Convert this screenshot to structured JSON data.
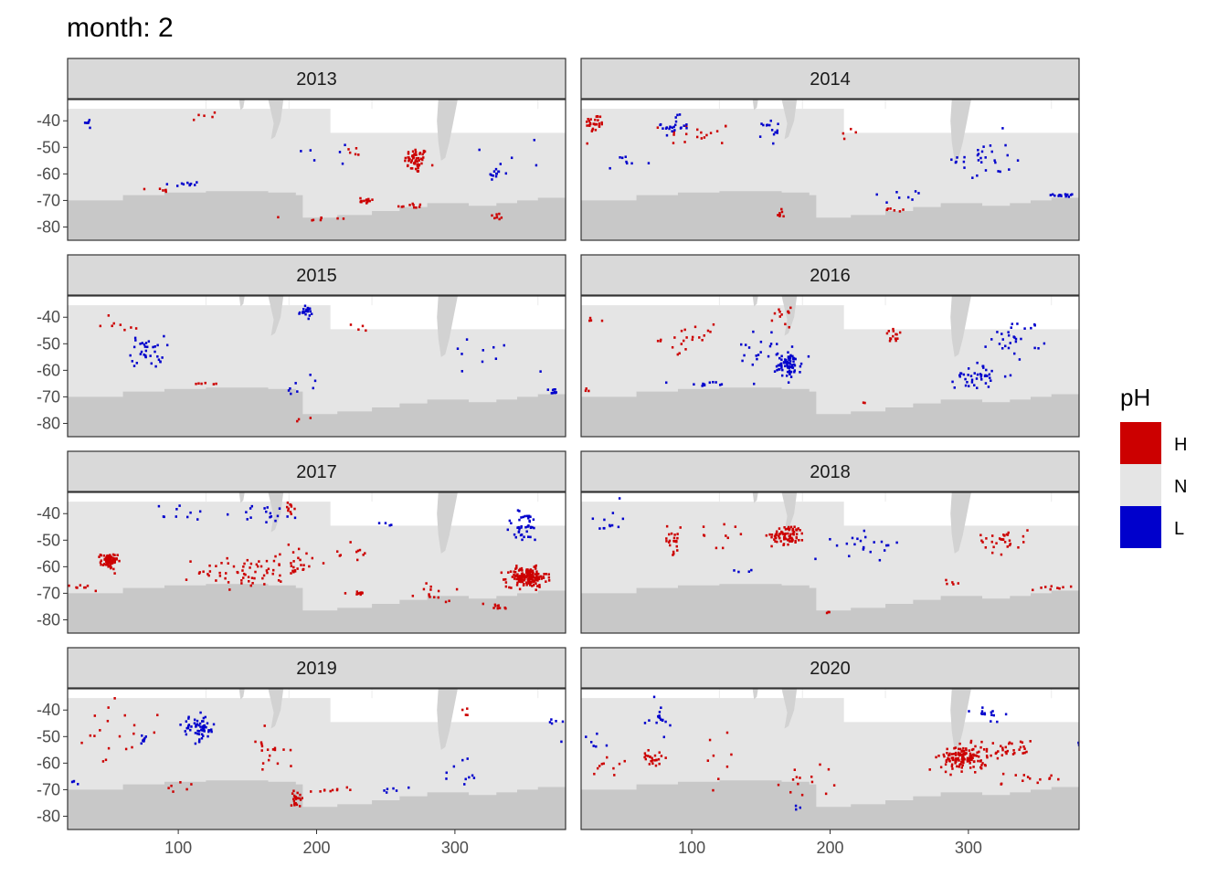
{
  "chart_data": {
    "type": "heatmap",
    "title": "month: 2",
    "xlabel": "",
    "ylabel": "",
    "xlim": [
      20,
      380
    ],
    "ylim": [
      -85,
      -32
    ],
    "x_ticks": [
      100,
      200,
      300
    ],
    "y_ticks": [
      -40,
      -50,
      -60,
      -70,
      -80
    ],
    "legend": {
      "title": "pH",
      "placement": "right",
      "entries": [
        {
          "label": "H",
          "color": "#CC0000"
        },
        {
          "label": "N",
          "color": "#E5E5E5"
        },
        {
          "label": "L",
          "color": "#0000CC"
        }
      ]
    },
    "colors": {
      "H": "#CC0000",
      "N": "#E5E5E5",
      "L": "#0000CC",
      "land": "#D2D2D2",
      "continent": "#C8C8C8",
      "panel_border": "#333333",
      "strip_bg": "#D9D9D9"
    },
    "panels": [
      {
        "year": "2013",
        "clusters": [
          {
            "c": "H",
            "x": 272,
            "y": -55,
            "sx": 7,
            "sy": 4,
            "n": 55
          },
          {
            "c": "H",
            "x": 235,
            "y": -70,
            "sx": 7,
            "sy": 1,
            "n": 14
          },
          {
            "c": "H",
            "x": 268,
            "y": -72,
            "sx": 8,
            "sy": 1,
            "n": 10
          },
          {
            "c": "H",
            "x": 330,
            "y": -76,
            "sx": 5,
            "sy": 1,
            "n": 8
          },
          {
            "c": "H",
            "x": 200,
            "y": -77,
            "sx": 18,
            "sy": 1,
            "n": 8
          },
          {
            "c": "H",
            "x": 90,
            "y": -66,
            "sx": 6,
            "sy": 1,
            "n": 6
          },
          {
            "c": "H",
            "x": 225,
            "y": -52,
            "sx": 8,
            "sy": 3,
            "n": 5
          },
          {
            "c": "H",
            "x": 120,
            "y": -38,
            "sx": 12,
            "sy": 2,
            "n": 5
          },
          {
            "c": "L",
            "x": 330,
            "y": -60,
            "sx": 5,
            "sy": 2,
            "n": 12
          },
          {
            "c": "L",
            "x": 103,
            "y": -64,
            "sx": 12,
            "sy": 1,
            "n": 10
          },
          {
            "c": "L",
            "x": 35,
            "y": -41,
            "sx": 4,
            "sy": 2,
            "n": 6
          },
          {
            "c": "L",
            "x": 205,
            "y": -52,
            "sx": 30,
            "sy": 4,
            "n": 6
          },
          {
            "c": "L",
            "x": 350,
            "y": -52,
            "sx": 25,
            "sy": 6,
            "n": 5
          }
        ]
      },
      {
        "year": "2014",
        "clusters": [
          {
            "c": "H",
            "x": 30,
            "y": -41,
            "sx": 6,
            "sy": 3,
            "n": 30
          },
          {
            "c": "H",
            "x": 105,
            "y": -45,
            "sx": 20,
            "sy": 4,
            "n": 18
          },
          {
            "c": "H",
            "x": 165,
            "y": -75,
            "sx": 3,
            "sy": 2,
            "n": 8
          },
          {
            "c": "H",
            "x": 240,
            "y": -74,
            "sx": 15,
            "sy": 1,
            "n": 6
          },
          {
            "c": "H",
            "x": 215,
            "y": -44,
            "sx": 5,
            "sy": 2,
            "n": 4
          },
          {
            "c": "L",
            "x": 86,
            "y": -42,
            "sx": 10,
            "sy": 3,
            "n": 22
          },
          {
            "c": "L",
            "x": 157,
            "y": -44,
            "sx": 5,
            "sy": 4,
            "n": 14
          },
          {
            "c": "L",
            "x": 310,
            "y": -54,
            "sx": 18,
            "sy": 8,
            "n": 30
          },
          {
            "c": "L",
            "x": 370,
            "y": -68,
            "sx": 7,
            "sy": 1,
            "n": 14
          },
          {
            "c": "L",
            "x": 50,
            "y": -56,
            "sx": 15,
            "sy": 2,
            "n": 8
          },
          {
            "c": "L",
            "x": 250,
            "y": -68,
            "sx": 20,
            "sy": 2,
            "n": 8
          }
        ]
      },
      {
        "year": "2015",
        "clusters": [
          {
            "c": "H",
            "x": 60,
            "y": -42,
            "sx": 20,
            "sy": 3,
            "n": 8
          },
          {
            "c": "H",
            "x": 120,
            "y": -65,
            "sx": 12,
            "sy": 1,
            "n": 6
          },
          {
            "c": "H",
            "x": 230,
            "y": -45,
            "sx": 10,
            "sy": 2,
            "n": 4
          },
          {
            "c": "H",
            "x": 190,
            "y": -78,
            "sx": 6,
            "sy": 1,
            "n": 3
          },
          {
            "c": "L",
            "x": 78,
            "y": -53,
            "sx": 10,
            "sy": 5,
            "n": 35
          },
          {
            "c": "L",
            "x": 192,
            "y": -38,
            "sx": 4,
            "sy": 1.5,
            "n": 22
          },
          {
            "c": "L",
            "x": 370,
            "y": -68,
            "sx": 6,
            "sy": 1,
            "n": 10
          },
          {
            "c": "L",
            "x": 320,
            "y": -55,
            "sx": 25,
            "sy": 8,
            "n": 10
          },
          {
            "c": "L",
            "x": 185,
            "y": -66,
            "sx": 15,
            "sy": 4,
            "n": 8
          }
        ]
      },
      {
        "year": "2016",
        "clusters": [
          {
            "c": "H",
            "x": 100,
            "y": -48,
            "sx": 18,
            "sy": 4,
            "n": 22
          },
          {
            "c": "H",
            "x": 165,
            "y": -40,
            "sx": 5,
            "sy": 3,
            "n": 12
          },
          {
            "c": "H",
            "x": 247,
            "y": -47,
            "sx": 6,
            "sy": 2,
            "n": 14
          },
          {
            "c": "H",
            "x": 30,
            "y": -40,
            "sx": 10,
            "sy": 2,
            "n": 4
          },
          {
            "c": "H",
            "x": 25,
            "y": -68,
            "sx": 3,
            "sy": 1,
            "n": 3
          },
          {
            "c": "H",
            "x": 225,
            "y": -72,
            "sx": 3,
            "sy": 1,
            "n": 2
          },
          {
            "c": "L",
            "x": 170,
            "y": -58,
            "sx": 8,
            "sy": 4,
            "n": 70
          },
          {
            "c": "L",
            "x": 150,
            "y": -53,
            "sx": 18,
            "sy": 6,
            "n": 20
          },
          {
            "c": "L",
            "x": 305,
            "y": -62,
            "sx": 12,
            "sy": 4,
            "n": 40
          },
          {
            "c": "L",
            "x": 335,
            "y": -48,
            "sx": 15,
            "sy": 6,
            "n": 30
          },
          {
            "c": "L",
            "x": 110,
            "y": -65,
            "sx": 20,
            "sy": 1,
            "n": 12
          }
        ]
      },
      {
        "year": "2017",
        "clusters": [
          {
            "c": "H",
            "x": 50,
            "y": -58,
            "sx": 5,
            "sy": 2.5,
            "n": 70
          },
          {
            "c": "H",
            "x": 352,
            "y": -64,
            "sx": 12,
            "sy": 3,
            "n": 160
          },
          {
            "c": "H",
            "x": 150,
            "y": -62,
            "sx": 30,
            "sy": 5,
            "n": 60
          },
          {
            "c": "H",
            "x": 185,
            "y": -58,
            "sx": 15,
            "sy": 5,
            "n": 25
          },
          {
            "c": "H",
            "x": 180,
            "y": -38,
            "sx": 3,
            "sy": 2,
            "n": 10
          },
          {
            "c": "H",
            "x": 230,
            "y": -55,
            "sx": 8,
            "sy": 5,
            "n": 10
          },
          {
            "c": "H",
            "x": 30,
            "y": -68,
            "sx": 12,
            "sy": 1,
            "n": 10
          },
          {
            "c": "H",
            "x": 225,
            "y": -70,
            "sx": 10,
            "sy": 1,
            "n": 10
          },
          {
            "c": "H",
            "x": 290,
            "y": -70,
            "sx": 15,
            "sy": 3,
            "n": 14
          },
          {
            "c": "H",
            "x": 330,
            "y": -75,
            "sx": 8,
            "sy": 1.5,
            "n": 10
          },
          {
            "c": "L",
            "x": 350,
            "y": -45,
            "sx": 12,
            "sy": 5,
            "n": 40
          },
          {
            "c": "L",
            "x": 165,
            "y": -40,
            "sx": 20,
            "sy": 3,
            "n": 18
          },
          {
            "c": "L",
            "x": 100,
            "y": -40,
            "sx": 20,
            "sy": 3,
            "n": 10
          },
          {
            "c": "L",
            "x": 250,
            "y": -44,
            "sx": 5,
            "sy": 1,
            "n": 4
          }
        ]
      },
      {
        "year": "2018",
        "clusters": [
          {
            "c": "H",
            "x": 170,
            "y": -48,
            "sx": 10,
            "sy": 3,
            "n": 80
          },
          {
            "c": "H",
            "x": 85,
            "y": -50,
            "sx": 8,
            "sy": 4,
            "n": 22
          },
          {
            "c": "H",
            "x": 325,
            "y": -50,
            "sx": 15,
            "sy": 4,
            "n": 30
          },
          {
            "c": "H",
            "x": 125,
            "y": -48,
            "sx": 15,
            "sy": 4,
            "n": 10
          },
          {
            "c": "H",
            "x": 360,
            "y": -68,
            "sx": 12,
            "sy": 1,
            "n": 10
          },
          {
            "c": "H",
            "x": 290,
            "y": -66,
            "sx": 5,
            "sy": 1,
            "n": 5
          },
          {
            "c": "H",
            "x": 198,
            "y": -77,
            "sx": 2,
            "sy": 1,
            "n": 3
          },
          {
            "c": "L",
            "x": 228,
            "y": -52,
            "sx": 20,
            "sy": 4,
            "n": 22
          },
          {
            "c": "L",
            "x": 40,
            "y": -42,
            "sx": 12,
            "sy": 5,
            "n": 12
          },
          {
            "c": "L",
            "x": 140,
            "y": -62,
            "sx": 10,
            "sy": 2,
            "n": 4
          }
        ]
      },
      {
        "year": "2019",
        "clusters": [
          {
            "c": "H",
            "x": 186,
            "y": -73,
            "sx": 4,
            "sy": 2,
            "n": 22
          },
          {
            "c": "H",
            "x": 50,
            "y": -50,
            "sx": 30,
            "sy": 10,
            "n": 20
          },
          {
            "c": "H",
            "x": 165,
            "y": -55,
            "sx": 12,
            "sy": 8,
            "n": 18
          },
          {
            "c": "H",
            "x": 210,
            "y": -70,
            "sx": 12,
            "sy": 1,
            "n": 10
          },
          {
            "c": "H",
            "x": 308,
            "y": -40,
            "sx": 3,
            "sy": 2,
            "n": 4
          },
          {
            "c": "H",
            "x": 100,
            "y": -70,
            "sx": 15,
            "sy": 2,
            "n": 6
          },
          {
            "c": "L",
            "x": 115,
            "y": -47,
            "sx": 10,
            "sy": 4,
            "n": 60
          },
          {
            "c": "L",
            "x": 75,
            "y": -51,
            "sx": 2,
            "sy": 1.5,
            "n": 8
          },
          {
            "c": "L",
            "x": 27,
            "y": -67,
            "sx": 3,
            "sy": 1,
            "n": 4
          },
          {
            "c": "L",
            "x": 255,
            "y": -70,
            "sx": 12,
            "sy": 1,
            "n": 6
          },
          {
            "c": "L",
            "x": 300,
            "y": -60,
            "sx": 20,
            "sy": 10,
            "n": 10
          },
          {
            "c": "L",
            "x": 372,
            "y": -45,
            "sx": 4,
            "sy": 4,
            "n": 6
          }
        ]
      },
      {
        "year": "2020",
        "clusters": [
          {
            "c": "H",
            "x": 297,
            "y": -58,
            "sx": 14,
            "sy": 4,
            "n": 140
          },
          {
            "c": "H",
            "x": 330,
            "y": -55,
            "sx": 15,
            "sy": 3,
            "n": 30
          },
          {
            "c": "H",
            "x": 72,
            "y": -58,
            "sx": 6,
            "sy": 2,
            "n": 24
          },
          {
            "c": "H",
            "x": 340,
            "y": -66,
            "sx": 25,
            "sy": 2,
            "n": 14
          },
          {
            "c": "H",
            "x": 40,
            "y": -61,
            "sx": 10,
            "sy": 3,
            "n": 10
          },
          {
            "c": "H",
            "x": 180,
            "y": -65,
            "sx": 18,
            "sy": 8,
            "n": 14
          },
          {
            "c": "H",
            "x": 120,
            "y": -60,
            "sx": 15,
            "sy": 8,
            "n": 8
          },
          {
            "c": "L",
            "x": 77,
            "y": -44,
            "sx": 6,
            "sy": 6,
            "n": 16
          },
          {
            "c": "L",
            "x": 312,
            "y": -40,
            "sx": 10,
            "sy": 3,
            "n": 14
          },
          {
            "c": "L",
            "x": 30,
            "y": -52,
            "sx": 8,
            "sy": 4,
            "n": 6
          },
          {
            "c": "L",
            "x": 178,
            "y": -77,
            "sx": 3,
            "sy": 1,
            "n": 3
          },
          {
            "c": "L",
            "x": 380,
            "y": -52,
            "sx": 1,
            "sy": 2,
            "n": 2
          }
        ]
      }
    ]
  }
}
